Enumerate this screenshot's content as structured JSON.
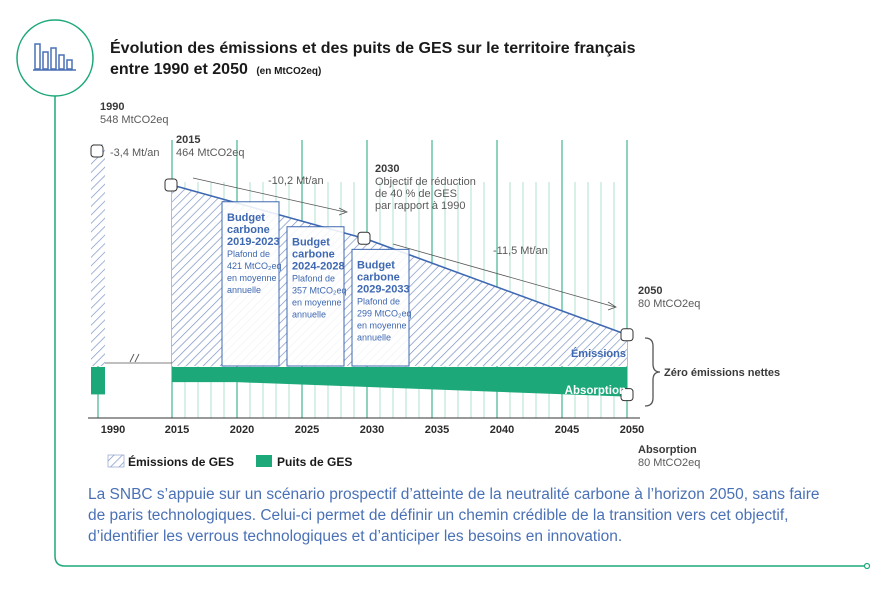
{
  "header": {
    "title_line1": "Évolution des émissions et des puits de GES sur le territoire français",
    "title_line2": "entre 1990 et 2050",
    "title_unit": "(en MtCO2eq)"
  },
  "chart_data": {
    "type": "area",
    "x_ticks": [
      "1990",
      "2015",
      "2020",
      "2025",
      "2030",
      "2035",
      "2040",
      "2045",
      "2050"
    ],
    "emissions": {
      "name": "Émissions de GES",
      "x": [
        1990,
        2015,
        2030,
        2050
      ],
      "y": [
        548,
        464,
        325,
        80
      ]
    },
    "absorption": {
      "name": "Puits de GES",
      "x": [
        1990,
        2015,
        2020,
        2050
      ],
      "y": [
        -47,
        -41,
        -41,
        -80
      ]
    },
    "carbon_budgets": [
      {
        "title_1": "Budget",
        "title_2": "carbone",
        "period": "2019-2023",
        "line_1": "Plafond de",
        "line_2": "421 MtCO₂eq",
        "line_3": "en moyenne",
        "line_4": "annuelle",
        "start": 2019,
        "end": 2023,
        "value": 421
      },
      {
        "title_1": "Budget",
        "title_2": "carbone",
        "period": "2024-2028",
        "line_1": "Plafond de",
        "line_2": "357 MtCO₂eq",
        "line_3": "en moyenne",
        "line_4": "annuelle",
        "start": 2024,
        "end": 2028,
        "value": 357
      },
      {
        "title_1": "Budget",
        "title_2": "carbone",
        "period": "2029-2033",
        "line_1": "Plafond de",
        "line_2": "299 MtCO₂eq",
        "line_3": "en moyenne",
        "line_4": "annuelle",
        "start": 2029,
        "end": 2033,
        "value": 299
      }
    ],
    "milestones": {
      "y1990": {
        "year": "1990",
        "value": "548 MtCO2eq"
      },
      "y2015": {
        "year": "2015",
        "value": "464 MtCO2eq"
      },
      "y2030": {
        "year": "2030",
        "line_1": "Objectif de réduction",
        "line_2": "de 40 % de GES",
        "line_3": "par rapport à 1990"
      },
      "y2050": {
        "year": "2050",
        "value": "80 MtCO2eq"
      },
      "absorption2050": {
        "label": "Absorption",
        "value": "80 MtCO2eq"
      }
    },
    "rates": [
      "-3,4 Mt/an",
      "-10,2 Mt/an",
      "-11,5 Mt/an"
    ],
    "area_labels": {
      "emissions": "Émissions",
      "absorption": "Absorption"
    },
    "net_zero_label": "Zéro émissions nettes",
    "legend": [
      {
        "label": "Émissions de GES",
        "style": "hatched"
      },
      {
        "label": "Puits de GES",
        "style": "solid"
      }
    ],
    "colors": {
      "green": "#1da87a",
      "blue": "#3e68b1",
      "hatch": "#6b86bf"
    }
  },
  "caption": "La SNBC s’appuie sur un scénario prospectif d’atteinte de la neutralité carbone à l’horizon 2050, sans faire de paris technologiques. Celui-ci permet de définir un chemin crédible de la transition vers cet objectif, d’identifier les verrous technologiques et d’anticiper les besoins en innovation."
}
